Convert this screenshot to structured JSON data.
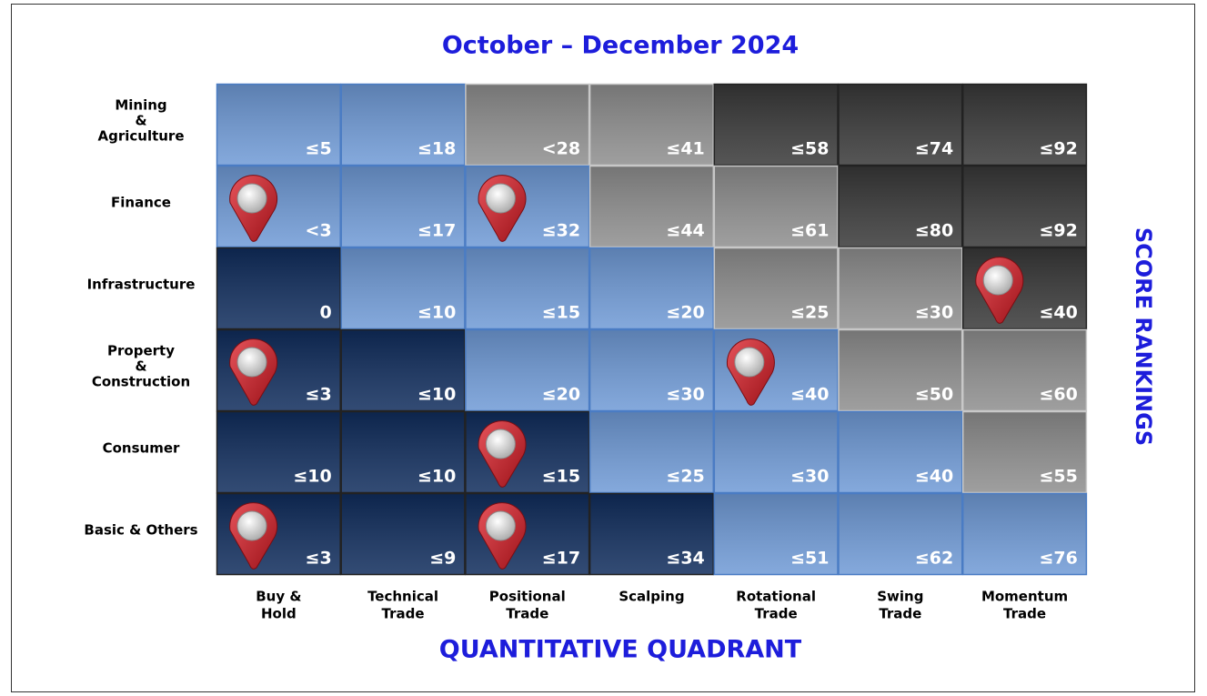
{
  "title": "October – December 2024",
  "x_axis_title": "QUANTITATIVE QUADRANT",
  "y_axis_title": "SCORE RANKINGS",
  "columns": [
    [
      "Buy &",
      "Hold"
    ],
    [
      "Technical",
      "Trade"
    ],
    [
      "Positional",
      "Trade"
    ],
    [
      "Scalping"
    ],
    [
      "Rotational",
      "Trade"
    ],
    [
      "Swing",
      "Trade"
    ],
    [
      "Momentum",
      "Trade"
    ]
  ],
  "colors": {
    "light": "#6f9ad6",
    "gray": "#8e8e8e",
    "dark": "#383838",
    "navy": "#0f2c5c"
  },
  "grid": {
    "rows": [
      {
        "label": [
          "Mining",
          "&",
          "Agriculture"
        ],
        "cells": [
          {
            "label": "≤5",
            "tone": "light",
            "pin": false
          },
          {
            "label": "≤18",
            "tone": "light",
            "pin": false
          },
          {
            "label": "<28",
            "tone": "gray",
            "pin": false
          },
          {
            "label": "≤41",
            "tone": "gray",
            "pin": false
          },
          {
            "label": "≤58",
            "tone": "dark",
            "pin": false
          },
          {
            "label": "≤74",
            "tone": "dark",
            "pin": false
          },
          {
            "label": "≤92",
            "tone": "dark",
            "pin": false
          }
        ]
      },
      {
        "label": [
          "Finance"
        ],
        "cells": [
          {
            "label": "<3",
            "tone": "light",
            "pin": true
          },
          {
            "label": "≤17",
            "tone": "light",
            "pin": false
          },
          {
            "label": "≤32",
            "tone": "light",
            "pin": true
          },
          {
            "label": "≤44",
            "tone": "gray",
            "pin": false
          },
          {
            "label": "≤61",
            "tone": "gray",
            "pin": false
          },
          {
            "label": "≤80",
            "tone": "dark",
            "pin": false
          },
          {
            "label": "≤92",
            "tone": "dark",
            "pin": false
          }
        ]
      },
      {
        "label": [
          "Infrastructure"
        ],
        "cells": [
          {
            "label": "0",
            "tone": "navy",
            "pin": false
          },
          {
            "label": "≤10",
            "tone": "light",
            "pin": false
          },
          {
            "label": "≤15",
            "tone": "light",
            "pin": false
          },
          {
            "label": "≤20",
            "tone": "light",
            "pin": false
          },
          {
            "label": "≤25",
            "tone": "gray",
            "pin": false
          },
          {
            "label": "≤30",
            "tone": "gray",
            "pin": false
          },
          {
            "label": "≤40",
            "tone": "dark",
            "pin": true
          }
        ]
      },
      {
        "label": [
          "Property",
          "&",
          "Construction"
        ],
        "cells": [
          {
            "label": "≤3",
            "tone": "navy",
            "pin": true
          },
          {
            "label": "≤10",
            "tone": "navy",
            "pin": false
          },
          {
            "label": "≤20",
            "tone": "light",
            "pin": false
          },
          {
            "label": "≤30",
            "tone": "light",
            "pin": false
          },
          {
            "label": "≤40",
            "tone": "light",
            "pin": true
          },
          {
            "label": "≤50",
            "tone": "gray",
            "pin": false
          },
          {
            "label": "≤60",
            "tone": "gray",
            "pin": false
          }
        ]
      },
      {
        "label": [
          "Consumer"
        ],
        "cells": [
          {
            "label": "≤10",
            "tone": "navy",
            "pin": false
          },
          {
            "label": "≤10",
            "tone": "navy",
            "pin": false
          },
          {
            "label": "≤15",
            "tone": "navy",
            "pin": true
          },
          {
            "label": "≤25",
            "tone": "light",
            "pin": false
          },
          {
            "label": "≤30",
            "tone": "light",
            "pin": false
          },
          {
            "label": "≤40",
            "tone": "light",
            "pin": false
          },
          {
            "label": "≤55",
            "tone": "gray",
            "pin": false
          }
        ]
      },
      {
        "label": [
          "Basic & Others"
        ],
        "cells": [
          {
            "label": "≤3",
            "tone": "navy",
            "pin": true
          },
          {
            "label": "≤9",
            "tone": "navy",
            "pin": false
          },
          {
            "label": "≤17",
            "tone": "navy",
            "pin": true
          },
          {
            "label": "≤34",
            "tone": "navy",
            "pin": false
          },
          {
            "label": "≤51",
            "tone": "light",
            "pin": false
          },
          {
            "label": "≤62",
            "tone": "light",
            "pin": false
          },
          {
            "label": "≤76",
            "tone": "light",
            "pin": false
          }
        ]
      }
    ]
  }
}
